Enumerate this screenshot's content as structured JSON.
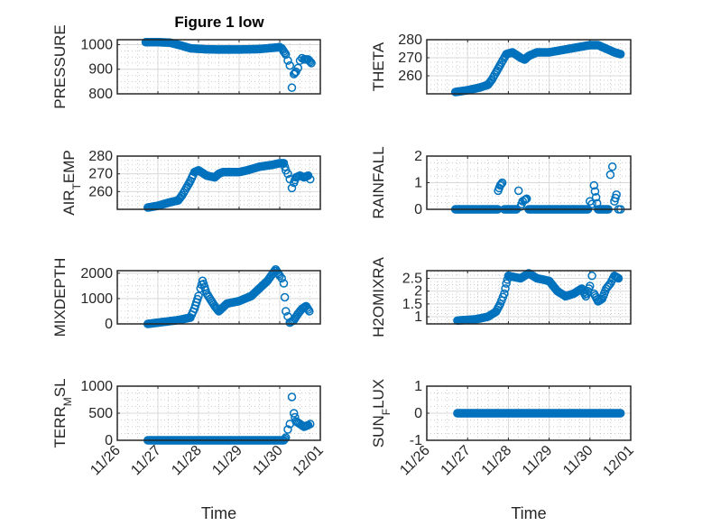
{
  "title": "Figure 1 low",
  "chart_data": [
    {
      "type": "scatter",
      "name": "pressure",
      "ylabel": [
        "PRESSURE"
      ],
      "ylim": [
        800,
        1020
      ],
      "yticks": [
        800,
        900,
        1000
      ],
      "x": [
        0.7,
        0.85,
        1.0,
        1.3,
        1.6,
        1.8,
        2.2,
        2.5,
        3.0,
        3.5,
        3.9,
        4.0,
        4.05,
        4.15,
        4.2,
        4.25,
        4.3,
        4.35,
        4.4,
        4.45,
        4.5,
        4.55,
        4.6,
        4.7,
        4.78
      ],
      "y": [
        1010,
        1010,
        1010,
        1008,
        995,
        985,
        981,
        980,
        980,
        982,
        988,
        990,
        985,
        960,
        935,
        915,
        825,
        880,
        890,
        905,
        935,
        945,
        940,
        940,
        925
      ]
    },
    {
      "type": "scatter",
      "name": "theta",
      "ylabel": [
        "THETA"
      ],
      "ylim": [
        250,
        280
      ],
      "yticks": [
        260,
        270,
        280
      ],
      "x": [
        0.7,
        1.0,
        1.3,
        1.5,
        1.6,
        1.7,
        1.8,
        1.9,
        1.95,
        2.1,
        2.3,
        2.4,
        2.5,
        2.7,
        3.0,
        3.5,
        4.0,
        4.2,
        4.3,
        4.4,
        4.6,
        4.75
      ],
      "y": [
        251,
        252,
        253.5,
        255,
        258,
        262,
        266,
        270,
        272,
        273,
        270,
        269,
        271,
        273,
        273,
        275,
        277,
        277,
        276,
        275,
        273,
        272
      ]
    },
    {
      "type": "scatter",
      "name": "air-temp",
      "ylabel": [
        "AIR",
        "T",
        "EMP"
      ],
      "ylim": [
        250,
        280
      ],
      "yticks": [
        260,
        270,
        280
      ],
      "x": [
        0.75,
        1.0,
        1.3,
        1.5,
        1.6,
        1.7,
        1.8,
        1.9,
        2.0,
        2.2,
        2.4,
        2.5,
        2.6,
        3.0,
        3.2,
        3.5,
        3.8,
        4.0,
        4.1,
        4.15,
        4.2,
        4.25,
        4.3,
        4.35,
        4.4,
        4.5,
        4.6,
        4.7,
        4.75
      ],
      "y": [
        251,
        252,
        254,
        255,
        258,
        262,
        266,
        271,
        272,
        269,
        268,
        270,
        271,
        271,
        272,
        274,
        275,
        276,
        276,
        272,
        270,
        267,
        262,
        265,
        268,
        269,
        268,
        269,
        267
      ]
    },
    {
      "type": "scatter",
      "name": "rainfall",
      "ylabel": [
        "RAINFALL"
      ],
      "ylim": [
        0,
        2
      ],
      "yticks": [
        0,
        1,
        2
      ],
      "x": [
        0.7,
        1.74,
        1.75,
        1.8,
        1.85,
        1.9,
        2.2,
        2.25,
        2.3,
        2.35,
        2.4,
        2.45,
        2.5,
        3.95,
        4.0,
        4.05,
        4.1,
        4.2,
        4.45,
        4.5,
        4.55,
        4.6,
        4.65,
        4.7,
        4.75
      ],
      "y": [
        0,
        0,
        0.7,
        0.9,
        1.0,
        0,
        0,
        0.7,
        0.1,
        0.3,
        0.35,
        0.4,
        0,
        0,
        0.3,
        0.2,
        0.9,
        0,
        0,
        1.3,
        1.6,
        0.3,
        0.55,
        0,
        0
      ]
    },
    {
      "type": "scatter",
      "name": "mixdepth",
      "ylabel": [
        "MIXDEPTH"
      ],
      "ylim": [
        0,
        2100
      ],
      "yticks": [
        0,
        1000,
        2000
      ],
      "x": [
        0.75,
        1.0,
        1.5,
        1.8,
        1.9,
        2.0,
        2.05,
        2.1,
        2.2,
        2.4,
        2.5,
        2.7,
        3.0,
        3.3,
        3.5,
        3.7,
        3.9,
        4.0,
        4.05,
        4.1,
        4.15,
        4.2,
        4.25,
        4.35,
        4.45,
        4.55,
        4.65,
        4.73
      ],
      "y": [
        0,
        50,
        150,
        250,
        600,
        1100,
        1400,
        1700,
        1200,
        700,
        500,
        800,
        900,
        1100,
        1400,
        1700,
        2150,
        1900,
        1800,
        1600,
        500,
        300,
        50,
        150,
        400,
        600,
        700,
        500
      ]
    },
    {
      "type": "scatter",
      "name": "h2omixra",
      "ylabel": [
        "H2OMIXRA"
      ],
      "ylim": [
        0.72,
        2.8
      ],
      "yticks": [
        1,
        1.5,
        2,
        2.5
      ],
      "x": [
        0.75,
        1.2,
        1.5,
        1.7,
        1.8,
        1.9,
        1.95,
        2.0,
        2.3,
        2.5,
        2.7,
        3.0,
        3.2,
        3.4,
        3.6,
        3.8,
        3.9,
        4.0,
        4.05,
        4.1,
        4.2,
        4.3,
        4.4,
        4.5,
        4.6,
        4.7
      ],
      "y": [
        0.85,
        0.9,
        1.0,
        1.2,
        1.5,
        1.9,
        2.3,
        2.6,
        2.5,
        2.7,
        2.5,
        2.4,
        2.0,
        1.8,
        1.9,
        2.1,
        1.8,
        2.2,
        2.6,
        1.9,
        1.6,
        1.7,
        2.1,
        2.3,
        2.6,
        2.5
      ]
    },
    {
      "type": "scatter",
      "name": "terr-msl",
      "ylabel": [
        "TERR",
        "M",
        "SL"
      ],
      "ylim": [
        0,
        1000
      ],
      "yticks": [
        0,
        500,
        1000
      ],
      "x": [
        0.75,
        4.1,
        4.15,
        4.2,
        4.25,
        4.3,
        4.35,
        4.4,
        4.5,
        4.6,
        4.7,
        4.75
      ],
      "y": [
        0,
        0,
        50,
        200,
        300,
        800,
        500,
        350,
        300,
        250,
        280,
        300
      ]
    },
    {
      "type": "scatter",
      "name": "sun-flux",
      "ylabel": [
        "SUN",
        "F",
        "LUX"
      ],
      "ylim": [
        -1,
        1
      ],
      "yticks": [
        -1,
        0,
        1
      ],
      "x": [
        0.75,
        4.75
      ],
      "y": [
        0,
        0
      ]
    }
  ],
  "xaxis": {
    "label": "Time",
    "lim": [
      0,
      5
    ],
    "ticks": [
      "11/26",
      "11/27",
      "11/28",
      "11/29",
      "11/30",
      "12/01"
    ]
  },
  "colors": {
    "marker": "#0072BD",
    "axis": "#262626",
    "grid": "#d9d9d9"
  }
}
